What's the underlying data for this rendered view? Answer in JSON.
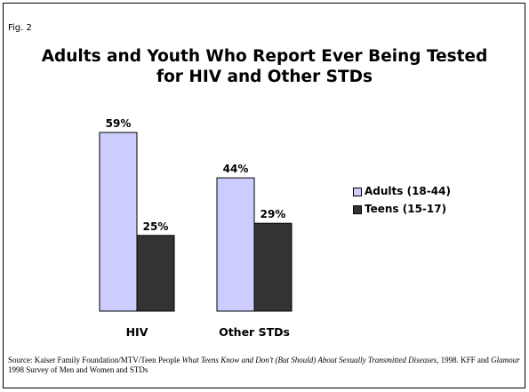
{
  "figure": {
    "label": "Fig. 2",
    "title_line1": "Adults and Youth Who Report Ever Being Tested",
    "title_line2": "for HIV and Other STDs"
  },
  "chart_data": {
    "type": "bar",
    "categories": [
      "HIV",
      "Other STDs"
    ],
    "series": [
      {
        "name": "Adults (18-44)",
        "values": [
          59,
          44
        ],
        "labels": [
          "59%",
          "44%"
        ],
        "color": "#CCCCFF"
      },
      {
        "name": "Teens (15-17)",
        "values": [
          25,
          29
        ],
        "labels": [
          "25%",
          "29%"
        ],
        "color": "#333333"
      }
    ],
    "unit": "%",
    "ylim": [
      0,
      59
    ],
    "grid": false,
    "legend_position": "right",
    "xlabel": "",
    "ylabel": ""
  },
  "source": {
    "prefix": "Source: Kaiser Family Foundation/MTV/Teen People ",
    "italic_title": "What Teens Know and Don’t (But Should) About Sexually Transmitted Diseases",
    "middle": ", 1998. KFF and ",
    "italic_mag": "Glamour",
    "suffix": " 1998 Survey of Men and Women and STDs"
  }
}
